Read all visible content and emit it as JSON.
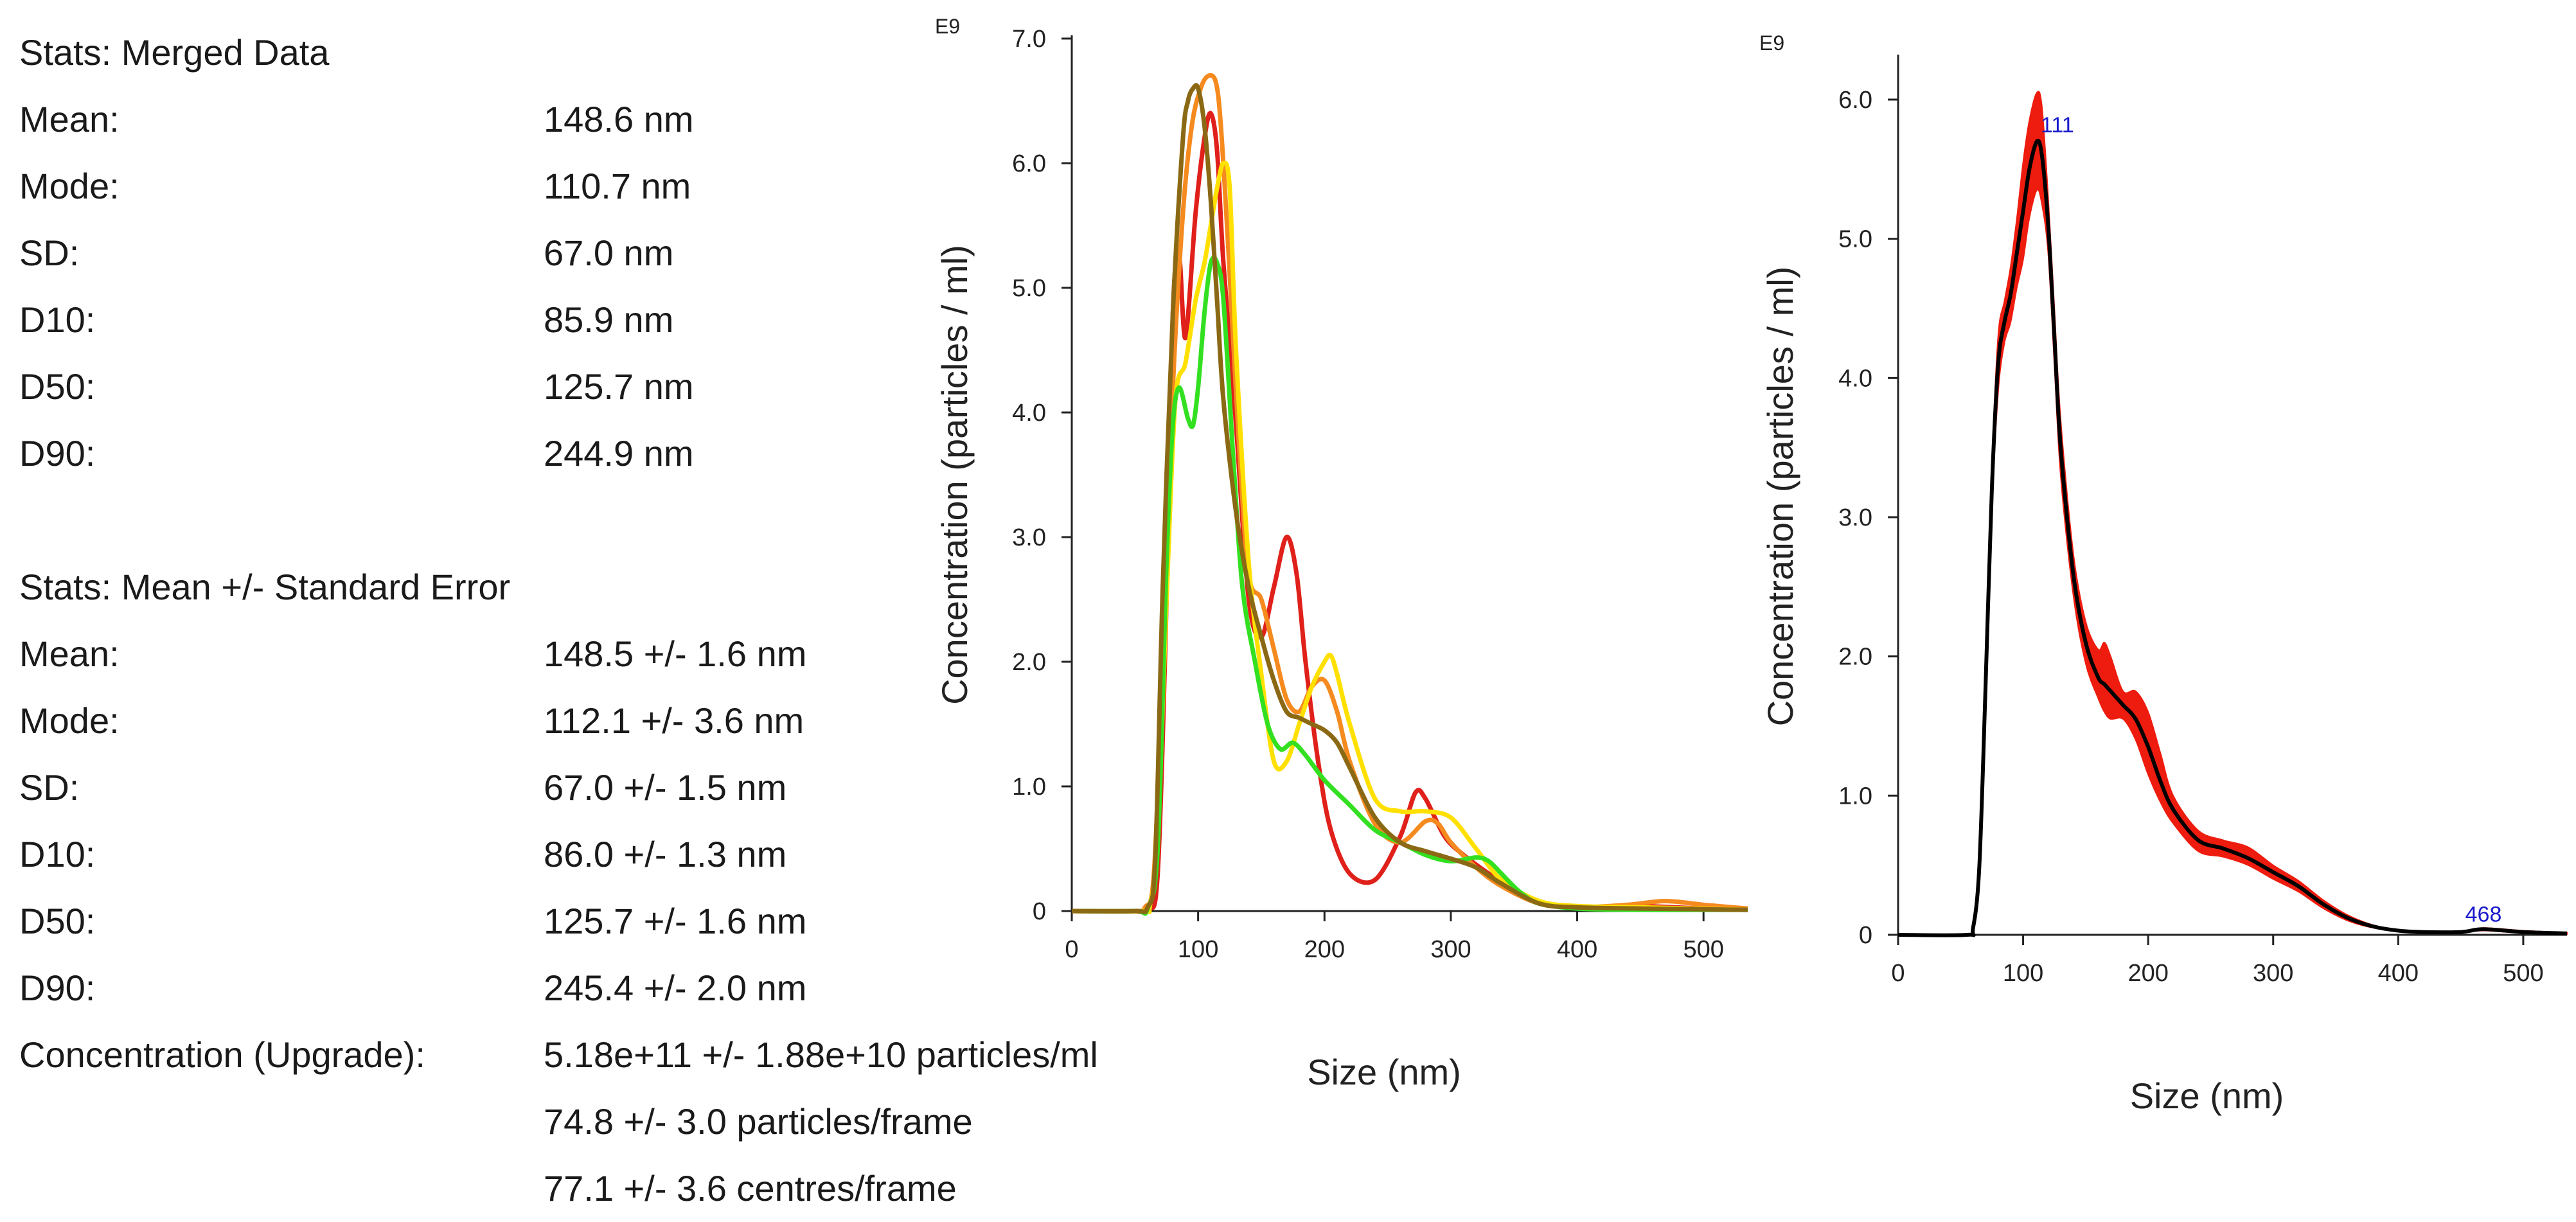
{
  "stats": {
    "merged": {
      "title": "Stats: Merged Data",
      "rows": [
        {
          "label": "Mean:",
          "value": "148.6 nm"
        },
        {
          "label": "Mode:",
          "value": "110.7 nm"
        },
        {
          "label": "SD:",
          "value": "67.0 nm"
        },
        {
          "label": "D10:",
          "value": "85.9 nm"
        },
        {
          "label": "D50:",
          "value": "125.7 nm"
        },
        {
          "label": "D90:",
          "value": "244.9 nm"
        }
      ]
    },
    "mean_se": {
      "title": "Stats: Mean +/- Standard Error",
      "rows": [
        {
          "label": "Mean:",
          "value": "148.5 +/- 1.6 nm"
        },
        {
          "label": "Mode:",
          "value": "112.1 +/- 3.6 nm"
        },
        {
          "label": "SD:",
          "value": "67.0 +/- 1.5 nm"
        },
        {
          "label": "D10:",
          "value": "86.0 +/- 1.3 nm"
        },
        {
          "label": "D50:",
          "value": "125.7 +/- 1.6 nm"
        },
        {
          "label": "D90:",
          "value": "245.4 +/- 2.0 nm"
        }
      ]
    },
    "concentration": {
      "label": "Concentration (Upgrade):",
      "values": [
        "5.18e+11 +/- 1.88e+10 particles/ml",
        "74.8 +/- 3.0 particles/frame",
        "77.1 +/- 3.6 centres/frame"
      ]
    }
  },
  "chart_data": [
    {
      "type": "line",
      "title": "",
      "xlabel": "Size (nm)",
      "ylabel": "Concentration (particles / ml)",
      "exponent_label": "E9",
      "xlim": [
        0,
        535
      ],
      "ylim": [
        0,
        7.0
      ],
      "xticks": [
        0,
        100,
        200,
        300,
        400,
        500
      ],
      "xtick_labels": [
        "0",
        "100",
        "200",
        "300",
        "400",
        "500"
      ],
      "yticks": [
        0,
        1,
        2,
        3,
        4,
        5,
        6,
        7
      ],
      "ytick_labels": [
        "0",
        "1.0",
        "2.0",
        "3.0",
        "4.0",
        "5.0",
        "6.0",
        "7.0"
      ],
      "series": [
        {
          "name": "red",
          "color": "#e0201a",
          "x": [
            0,
            45,
            60,
            68,
            75,
            80,
            85,
            90,
            98,
            105,
            110,
            115,
            120,
            130,
            140,
            150,
            160,
            170,
            178,
            185,
            195,
            205,
            220,
            240,
            260,
            272,
            280,
            295,
            310,
            330,
            360,
            400,
            450,
            500,
            535
          ],
          "y": [
            0,
            0,
            0.02,
            0.3,
            2.5,
            4.8,
            5.25,
            4.6,
            5.6,
            6.2,
            6.4,
            6.1,
            5.2,
            3.9,
            2.5,
            2.2,
            2.6,
            3.0,
            2.7,
            2.0,
            1.2,
            0.65,
            0.3,
            0.25,
            0.6,
            0.95,
            0.9,
            0.6,
            0.45,
            0.3,
            0.1,
            0.03,
            0.04,
            0.02,
            0.02
          ]
        },
        {
          "name": "orange",
          "color": "#f58a1f",
          "x": [
            0,
            48,
            58,
            65,
            72,
            80,
            88,
            95,
            102,
            108,
            114,
            118,
            124,
            132,
            140,
            150,
            160,
            170,
            180,
            190,
            200,
            210,
            220,
            240,
            260,
            280,
            290,
            300,
            320,
            340,
            370,
            400,
            440,
            470,
            500,
            535
          ],
          "y": [
            0,
            0,
            0.03,
            0.3,
            2.0,
            4.2,
            5.6,
            6.3,
            6.6,
            6.7,
            6.65,
            6.3,
            5.3,
            3.8,
            2.7,
            2.5,
            2.1,
            1.7,
            1.6,
            1.8,
            1.85,
            1.6,
            1.2,
            0.7,
            0.55,
            0.72,
            0.7,
            0.55,
            0.35,
            0.2,
            0.06,
            0.03,
            0.05,
            0.08,
            0.05,
            0.02
          ]
        },
        {
          "name": "yellow",
          "color": "#ffe000",
          "x": [
            0,
            55,
            62,
            68,
            75,
            82,
            90,
            98,
            105,
            110,
            115,
            120,
            125,
            130,
            140,
            150,
            160,
            170,
            180,
            190,
            200,
            205,
            210,
            220,
            240,
            260,
            280,
            300,
            320,
            340,
            370,
            400,
            450,
            535
          ],
          "y": [
            0,
            0,
            0.05,
            0.6,
            2.5,
            4.1,
            4.4,
            4.9,
            5.2,
            5.5,
            5.8,
            6.0,
            5.8,
            4.5,
            2.8,
            1.9,
            1.2,
            1.2,
            1.5,
            1.8,
            2.0,
            2.05,
            1.9,
            1.5,
            0.9,
            0.8,
            0.8,
            0.75,
            0.5,
            0.25,
            0.08,
            0.04,
            0.03,
            0.01
          ]
        },
        {
          "name": "green",
          "color": "#33e021",
          "x": [
            0,
            50,
            60,
            68,
            75,
            80,
            85,
            92,
            96,
            100,
            105,
            110,
            115,
            120,
            128,
            135,
            145,
            155,
            165,
            175,
            185,
            200,
            220,
            240,
            260,
            280,
            300,
            320,
            330,
            340,
            355,
            370,
            400,
            450,
            500,
            535
          ],
          "y": [
            0,
            0,
            0.02,
            0.5,
            2.8,
            3.9,
            4.2,
            3.95,
            3.9,
            4.2,
            4.8,
            5.2,
            5.2,
            4.9,
            3.6,
            2.6,
            2.0,
            1.5,
            1.3,
            1.35,
            1.25,
            1.05,
            0.85,
            0.65,
            0.55,
            0.45,
            0.4,
            0.43,
            0.4,
            0.3,
            0.15,
            0.06,
            0.02,
            0.01,
            0.01,
            0.01
          ]
        },
        {
          "name": "olive",
          "color": "#8b6914",
          "x": [
            0,
            50,
            60,
            66,
            72,
            80,
            88,
            92,
            96,
            100,
            105,
            110,
            115,
            120,
            130,
            140,
            150,
            160,
            170,
            180,
            190,
            200,
            210,
            220,
            240,
            260,
            280,
            300,
            320,
            340,
            370,
            400,
            450,
            535
          ],
          "y": [
            0,
            0,
            0.03,
            0.4,
            2.6,
            4.8,
            6.2,
            6.5,
            6.6,
            6.6,
            6.3,
            5.7,
            4.9,
            4.1,
            3.2,
            2.6,
            2.2,
            1.85,
            1.6,
            1.55,
            1.5,
            1.45,
            1.35,
            1.15,
            0.75,
            0.55,
            0.48,
            0.42,
            0.35,
            0.22,
            0.06,
            0.03,
            0.02,
            0.01
          ]
        }
      ]
    },
    {
      "type": "area",
      "title": "",
      "xlabel": "Size (nm)",
      "ylabel": "Concentration (particles / ml)",
      "exponent_label": "E9",
      "xlim": [
        0,
        535
      ],
      "ylim": [
        0,
        6.3
      ],
      "xticks": [
        0,
        100,
        200,
        300,
        400,
        500
      ],
      "xtick_labels": [
        "0",
        "100",
        "200",
        "300",
        "400",
        "500"
      ],
      "yticks": [
        0,
        1,
        2,
        3,
        4,
        5,
        6
      ],
      "ytick_labels": [
        "0",
        "1.0",
        "2.0",
        "3.0",
        "4.0",
        "5.0",
        "6.0"
      ],
      "band_color": "#ee1c0e",
      "mean_color": "#000000",
      "annotation_color": "#1a1acc",
      "x": [
        0,
        55,
        60,
        65,
        70,
        75,
        80,
        85,
        90,
        95,
        100,
        105,
        111,
        115,
        120,
        125,
        130,
        140,
        150,
        160,
        165,
        170,
        180,
        190,
        200,
        210,
        220,
        240,
        260,
        280,
        300,
        320,
        340,
        360,
        380,
        400,
        420,
        450,
        468,
        500,
        535
      ],
      "mean": [
        0,
        0,
        0.05,
        0.5,
        1.8,
        3.2,
        4.1,
        4.4,
        4.6,
        4.9,
        5.2,
        5.5,
        5.7,
        5.6,
        5.1,
        4.3,
        3.5,
        2.6,
        2.1,
        1.85,
        1.8,
        1.75,
        1.65,
        1.55,
        1.35,
        1.1,
        0.9,
        0.68,
        0.62,
        0.55,
        0.45,
        0.35,
        0.22,
        0.12,
        0.06,
        0.03,
        0.02,
        0.02,
        0.04,
        0.02,
        0.01
      ],
      "upper": [
        0,
        0,
        0.06,
        0.55,
        1.9,
        3.35,
        4.3,
        4.55,
        4.8,
        5.15,
        5.55,
        5.85,
        6.05,
        5.95,
        5.3,
        4.5,
        3.7,
        2.75,
        2.25,
        2.05,
        2.1,
        2.0,
        1.75,
        1.75,
        1.6,
        1.3,
        1.0,
        0.75,
        0.68,
        0.63,
        0.5,
        0.39,
        0.25,
        0.14,
        0.07,
        0.035,
        0.025,
        0.025,
        0.05,
        0.03,
        0.015
      ],
      "lower": [
        0,
        0,
        0.04,
        0.45,
        1.7,
        3.05,
        3.9,
        4.25,
        4.4,
        4.65,
        4.85,
        5.15,
        5.35,
        5.25,
        4.9,
        4.1,
        3.3,
        2.45,
        1.95,
        1.7,
        1.6,
        1.55,
        1.55,
        1.4,
        1.15,
        0.95,
        0.8,
        0.6,
        0.56,
        0.5,
        0.4,
        0.31,
        0.19,
        0.1,
        0.05,
        0.025,
        0.015,
        0.015,
        0.03,
        0.012,
        0.005
      ],
      "annotations": [
        {
          "x": 111,
          "y": 5.7,
          "text": "111"
        },
        {
          "x": 468,
          "y": 0.04,
          "text": "468"
        }
      ]
    }
  ]
}
